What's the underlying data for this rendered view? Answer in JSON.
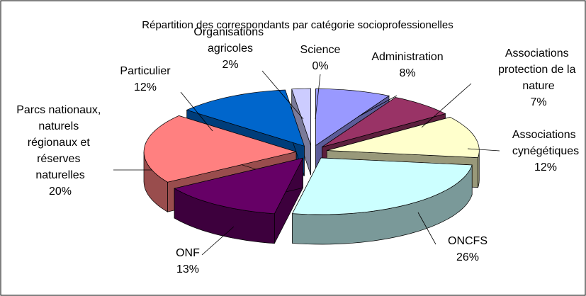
{
  "chart_data": {
    "type": "pie3d",
    "title": "Répartition des correspondants par catégorie socioprofessionelles",
    "categories": [
      "Administration",
      "Associations protection de la nature",
      "Associations cynégétiques",
      "ONCFS",
      "ONF",
      "Parcs nationaux, naturels régionaux et réserves naturelles",
      "Particulier",
      "Organisations agricoles",
      "Science"
    ],
    "values": [
      8,
      7,
      12,
      26,
      13,
      20,
      12,
      2,
      0
    ],
    "value_labels": [
      "8%",
      "7%",
      "12%",
      "26%",
      "13%",
      "20%",
      "12%",
      "2%",
      "0%"
    ],
    "colors": [
      "#9999ff",
      "#993366",
      "#ffffcc",
      "#ccffff",
      "#660066",
      "#ff8080",
      "#0066cc",
      "#ccccff",
      "#000080"
    ]
  }
}
